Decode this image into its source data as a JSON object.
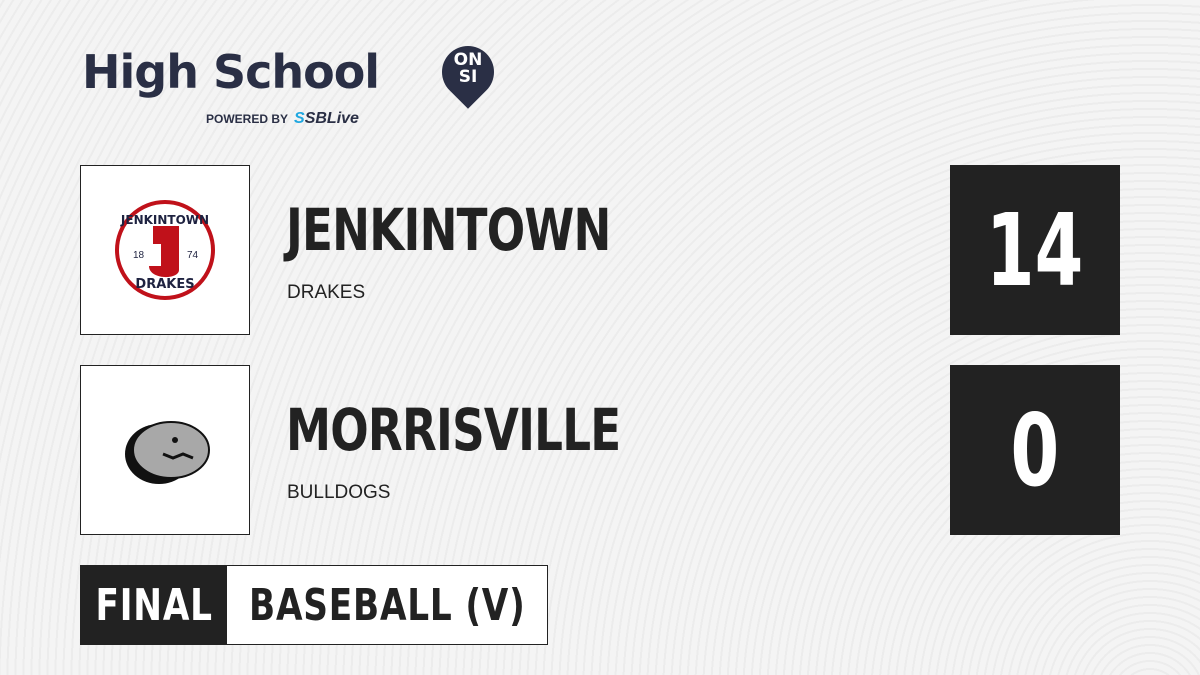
{
  "brand": {
    "title": "High School",
    "badge_top": "ON",
    "badge_bottom": "SI",
    "powered_by": "POWERED BY",
    "sponsor": "SBLive"
  },
  "teams": [
    {
      "name": "JENKINTOWN",
      "mascot": "DRAKES",
      "score": "14",
      "logo_text_top": "JENKINTOWN",
      "logo_text_bottom": "DRAKES",
      "logo_year_left": "18",
      "logo_year_right": "74",
      "logo_letter": "J",
      "color": "#c0111a"
    },
    {
      "name": "MORRISVILLE",
      "mascot": "BULLDOGS",
      "score": "0"
    }
  ],
  "status": {
    "label": "FINAL",
    "sport": "BASEBALL (V)"
  }
}
